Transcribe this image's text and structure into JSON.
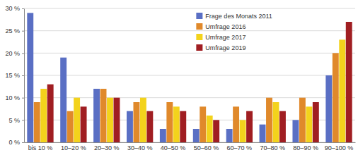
{
  "chart_data": {
    "type": "bar",
    "categories": [
      "bis 10 %",
      "10–20 %",
      "20–30 %",
      "30–40 %",
      "40–50 %",
      "50–60 %",
      "60–70 %",
      "70–80 %",
      "80–90 %",
      "90–100 %"
    ],
    "series": [
      {
        "name": "Frage des Monats 2011",
        "color": "#5a6fc4",
        "values": [
          29,
          19,
          12,
          7,
          3,
          3,
          3,
          4,
          5,
          15
        ]
      },
      {
        "name": "Umfrage 2016",
        "color": "#e0892b",
        "values": [
          9,
          7,
          12,
          9,
          9,
          8,
          8,
          10,
          10,
          20
        ]
      },
      {
        "name": "Umfrage 2017",
        "color": "#f3d31c",
        "values": [
          12,
          10,
          10,
          10,
          8,
          6,
          5,
          9,
          8,
          23
        ]
      },
      {
        "name": "Umfrage 2019",
        "color": "#a01e22",
        "values": [
          13,
          8,
          10,
          7,
          7,
          5,
          7,
          7,
          9,
          27
        ]
      }
    ],
    "ylim": [
      0,
      30
    ],
    "yticks": [
      {
        "value": 0,
        "label": "0 %"
      },
      {
        "value": 5,
        "label": "5 %"
      },
      {
        "value": 10,
        "label": "10 %"
      },
      {
        "value": 15,
        "label": "15 %"
      },
      {
        "value": 20,
        "label": "20 %"
      },
      {
        "value": 25,
        "label": "25 %"
      },
      {
        "value": 30,
        "label": "30 %"
      }
    ],
    "grid": true,
    "legend": "top"
  }
}
